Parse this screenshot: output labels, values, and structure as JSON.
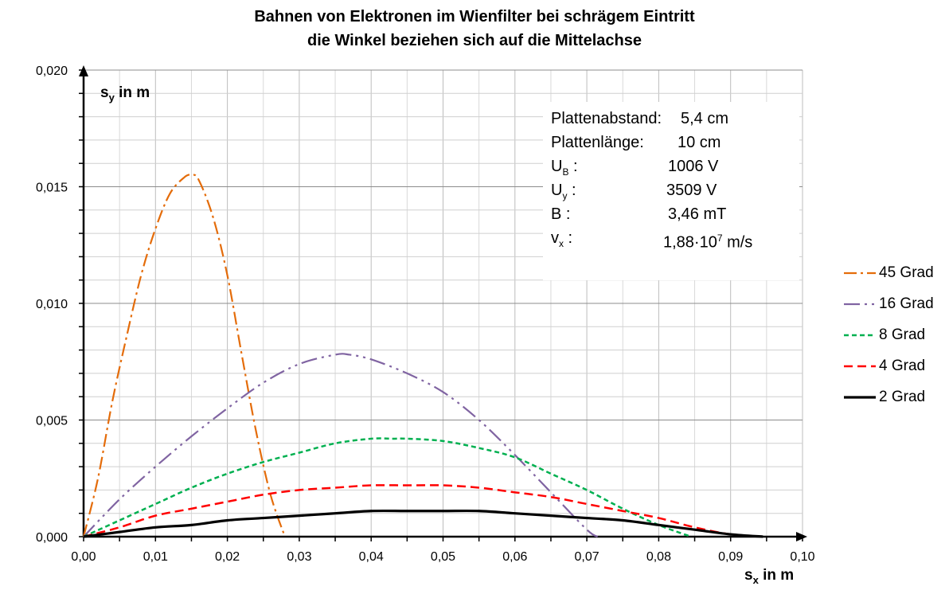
{
  "chart_data": {
    "type": "line",
    "title": [
      "Bahnen von Elektronen im Wienfilter bei schrägem Eintritt",
      "die Winkel beziehen sich auf die Mittelachse"
    ],
    "xlabel": {
      "main": "s",
      "sub": "x",
      "rest": " in m"
    },
    "ylabel": {
      "main": "s",
      "sub": "y",
      "rest": " in m"
    },
    "xlim": [
      0,
      0.1
    ],
    "ylim": [
      0,
      0.02
    ],
    "x_ticks": [
      "0,00",
      "0,01",
      "0,02",
      "0,03",
      "0,04",
      "0,05",
      "0,06",
      "0,07",
      "0,08",
      "0,09",
      "0,10"
    ],
    "y_ticks": [
      "0,000",
      "0,005",
      "0,010",
      "0,015",
      "0,020"
    ],
    "grid": true,
    "legend_position": "right",
    "series": [
      {
        "name": "45 Grad",
        "color": "#E46C0A",
        "dash": "16 5 3 5",
        "width": 2.2,
        "x": [
          0,
          0.002,
          0.004,
          0.006,
          0.008,
          0.01,
          0.012,
          0.014,
          0.015,
          0.016,
          0.018,
          0.02,
          0.022,
          0.024,
          0.026,
          0.028
        ],
        "y": [
          0,
          0.0025,
          0.0058,
          0.0086,
          0.0112,
          0.0132,
          0.0147,
          0.0154,
          0.0155,
          0.0153,
          0.0137,
          0.0112,
          0.0078,
          0.0045,
          0.0018,
          0
        ]
      },
      {
        "name": "16 Grad",
        "color": "#8064A2",
        "dash": "20 6 3 6 3 6",
        "width": 2.2,
        "x": [
          0,
          0.005,
          0.01,
          0.015,
          0.02,
          0.025,
          0.03,
          0.035,
          0.037,
          0.04,
          0.045,
          0.05,
          0.055,
          0.06,
          0.065,
          0.07,
          0.0715
        ],
        "y": [
          0,
          0.0016,
          0.003,
          0.0043,
          0.0055,
          0.0066,
          0.0074,
          0.0078,
          0.0078,
          0.0076,
          0.007,
          0.0062,
          0.005,
          0.0035,
          0.0019,
          0.0003,
          0
        ]
      },
      {
        "name": "8 Grad",
        "color": "#00B050",
        "dash": "6 4",
        "width": 2.5,
        "x": [
          0,
          0.005,
          0.01,
          0.015,
          0.02,
          0.025,
          0.03,
          0.035,
          0.04,
          0.043,
          0.045,
          0.05,
          0.055,
          0.06,
          0.065,
          0.07,
          0.075,
          0.08,
          0.0845
        ],
        "y": [
          0,
          0.0007,
          0.0014,
          0.0021,
          0.0027,
          0.0032,
          0.0036,
          0.004,
          0.0042,
          0.0042,
          0.0042,
          0.0041,
          0.0038,
          0.0034,
          0.0027,
          0.002,
          0.0012,
          0.0005,
          0
        ]
      },
      {
        "name": "4 Grad",
        "color": "#FF0000",
        "dash": "11 6",
        "width": 2.5,
        "x": [
          0,
          0.005,
          0.01,
          0.015,
          0.02,
          0.025,
          0.03,
          0.035,
          0.04,
          0.045,
          0.05,
          0.055,
          0.06,
          0.065,
          0.07,
          0.075,
          0.08,
          0.085,
          0.09,
          0.0945
        ],
        "y": [
          0,
          0.0004,
          0.0009,
          0.0012,
          0.0015,
          0.0018,
          0.002,
          0.0021,
          0.0022,
          0.0022,
          0.0022,
          0.0021,
          0.0019,
          0.0017,
          0.0014,
          0.0011,
          0.0008,
          0.0004,
          0.0001,
          0
        ]
      },
      {
        "name": "2 Grad",
        "color": "#000000",
        "dash": "",
        "width": 3.2,
        "x": [
          0,
          0.005,
          0.01,
          0.015,
          0.02,
          0.025,
          0.03,
          0.035,
          0.04,
          0.045,
          0.05,
          0.055,
          0.06,
          0.065,
          0.07,
          0.075,
          0.08,
          0.085,
          0.09,
          0.0945
        ],
        "y": [
          0,
          0.0002,
          0.0004,
          0.0005,
          0.0007,
          0.0008,
          0.0009,
          0.001,
          0.0011,
          0.0011,
          0.0011,
          0.0011,
          0.001,
          0.0009,
          0.0008,
          0.0007,
          0.0005,
          0.0003,
          0.0001,
          0
        ]
      }
    ]
  },
  "info_box": {
    "rows": [
      {
        "key": "Plattenabstand:",
        "value": "5,4 cm"
      },
      {
        "key": "Plattenlänge:",
        "value": "10 cm"
      },
      {
        "key_main": "U",
        "key_sub": "B",
        "key_rest": " :",
        "value": "1006 V"
      },
      {
        "key_main": "U",
        "key_sub": "y",
        "key_rest": " :",
        "value": "3509 V"
      },
      {
        "key": "B :",
        "value": "3,46 mT"
      },
      {
        "key_main": "v",
        "key_sub": "x",
        "key_rest": " :",
        "value_main": "1,88·10",
        "value_sup": "7",
        "value_rest": " m/s"
      }
    ]
  }
}
